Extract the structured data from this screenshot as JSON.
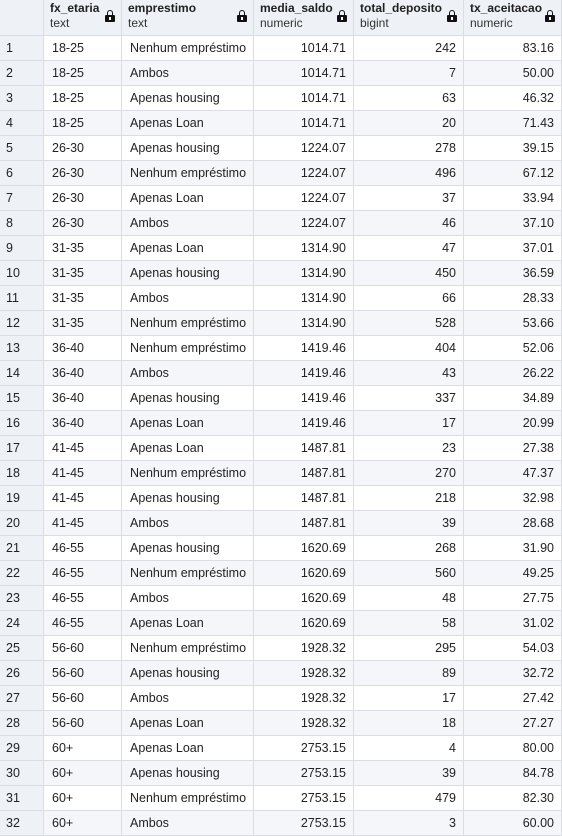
{
  "columns": [
    {
      "name": "fx_etaria",
      "type": "text"
    },
    {
      "name": "emprestimo",
      "type": "text"
    },
    {
      "name": "media_saldo",
      "type": "numeric"
    },
    {
      "name": "total_deposito",
      "type": "bigint"
    },
    {
      "name": "tx_aceitacao",
      "type": "numeric"
    }
  ],
  "icons": {
    "column_lock": "lock-icon"
  },
  "rows": [
    {
      "n": "1",
      "fx_etaria": "18-25",
      "emprestimo": "Nenhum empréstimo",
      "media_saldo": "1014.71",
      "total_deposito": "242",
      "tx_aceitacao": "83.16"
    },
    {
      "n": "2",
      "fx_etaria": "18-25",
      "emprestimo": "Ambos",
      "media_saldo": "1014.71",
      "total_deposito": "7",
      "tx_aceitacao": "50.00"
    },
    {
      "n": "3",
      "fx_etaria": "18-25",
      "emprestimo": "Apenas housing",
      "media_saldo": "1014.71",
      "total_deposito": "63",
      "tx_aceitacao": "46.32"
    },
    {
      "n": "4",
      "fx_etaria": "18-25",
      "emprestimo": "Apenas Loan",
      "media_saldo": "1014.71",
      "total_deposito": "20",
      "tx_aceitacao": "71.43"
    },
    {
      "n": "5",
      "fx_etaria": "26-30",
      "emprestimo": "Apenas housing",
      "media_saldo": "1224.07",
      "total_deposito": "278",
      "tx_aceitacao": "39.15"
    },
    {
      "n": "6",
      "fx_etaria": "26-30",
      "emprestimo": "Nenhum empréstimo",
      "media_saldo": "1224.07",
      "total_deposito": "496",
      "tx_aceitacao": "67.12"
    },
    {
      "n": "7",
      "fx_etaria": "26-30",
      "emprestimo": "Apenas Loan",
      "media_saldo": "1224.07",
      "total_deposito": "37",
      "tx_aceitacao": "33.94"
    },
    {
      "n": "8",
      "fx_etaria": "26-30",
      "emprestimo": "Ambos",
      "media_saldo": "1224.07",
      "total_deposito": "46",
      "tx_aceitacao": "37.10"
    },
    {
      "n": "9",
      "fx_etaria": "31-35",
      "emprestimo": "Apenas Loan",
      "media_saldo": "1314.90",
      "total_deposito": "47",
      "tx_aceitacao": "37.01"
    },
    {
      "n": "10",
      "fx_etaria": "31-35",
      "emprestimo": "Apenas housing",
      "media_saldo": "1314.90",
      "total_deposito": "450",
      "tx_aceitacao": "36.59"
    },
    {
      "n": "11",
      "fx_etaria": "31-35",
      "emprestimo": "Ambos",
      "media_saldo": "1314.90",
      "total_deposito": "66",
      "tx_aceitacao": "28.33"
    },
    {
      "n": "12",
      "fx_etaria": "31-35",
      "emprestimo": "Nenhum empréstimo",
      "media_saldo": "1314.90",
      "total_deposito": "528",
      "tx_aceitacao": "53.66"
    },
    {
      "n": "13",
      "fx_etaria": "36-40",
      "emprestimo": "Nenhum empréstimo",
      "media_saldo": "1419.46",
      "total_deposito": "404",
      "tx_aceitacao": "52.06"
    },
    {
      "n": "14",
      "fx_etaria": "36-40",
      "emprestimo": "Ambos",
      "media_saldo": "1419.46",
      "total_deposito": "43",
      "tx_aceitacao": "26.22"
    },
    {
      "n": "15",
      "fx_etaria": "36-40",
      "emprestimo": "Apenas housing",
      "media_saldo": "1419.46",
      "total_deposito": "337",
      "tx_aceitacao": "34.89"
    },
    {
      "n": "16",
      "fx_etaria": "36-40",
      "emprestimo": "Apenas Loan",
      "media_saldo": "1419.46",
      "total_deposito": "17",
      "tx_aceitacao": "20.99"
    },
    {
      "n": "17",
      "fx_etaria": "41-45",
      "emprestimo": "Apenas Loan",
      "media_saldo": "1487.81",
      "total_deposito": "23",
      "tx_aceitacao": "27.38"
    },
    {
      "n": "18",
      "fx_etaria": "41-45",
      "emprestimo": "Nenhum empréstimo",
      "media_saldo": "1487.81",
      "total_deposito": "270",
      "tx_aceitacao": "47.37"
    },
    {
      "n": "19",
      "fx_etaria": "41-45",
      "emprestimo": "Apenas housing",
      "media_saldo": "1487.81",
      "total_deposito": "218",
      "tx_aceitacao": "32.98"
    },
    {
      "n": "20",
      "fx_etaria": "41-45",
      "emprestimo": "Ambos",
      "media_saldo": "1487.81",
      "total_deposito": "39",
      "tx_aceitacao": "28.68"
    },
    {
      "n": "21",
      "fx_etaria": "46-55",
      "emprestimo": "Apenas housing",
      "media_saldo": "1620.69",
      "total_deposito": "268",
      "tx_aceitacao": "31.90"
    },
    {
      "n": "22",
      "fx_etaria": "46-55",
      "emprestimo": "Nenhum empréstimo",
      "media_saldo": "1620.69",
      "total_deposito": "560",
      "tx_aceitacao": "49.25"
    },
    {
      "n": "23",
      "fx_etaria": "46-55",
      "emprestimo": "Ambos",
      "media_saldo": "1620.69",
      "total_deposito": "48",
      "tx_aceitacao": "27.75"
    },
    {
      "n": "24",
      "fx_etaria": "46-55",
      "emprestimo": "Apenas Loan",
      "media_saldo": "1620.69",
      "total_deposito": "58",
      "tx_aceitacao": "31.02"
    },
    {
      "n": "25",
      "fx_etaria": "56-60",
      "emprestimo": "Nenhum empréstimo",
      "media_saldo": "1928.32",
      "total_deposito": "295",
      "tx_aceitacao": "54.03"
    },
    {
      "n": "26",
      "fx_etaria": "56-60",
      "emprestimo": "Apenas housing",
      "media_saldo": "1928.32",
      "total_deposito": "89",
      "tx_aceitacao": "32.72"
    },
    {
      "n": "27",
      "fx_etaria": "56-60",
      "emprestimo": "Ambos",
      "media_saldo": "1928.32",
      "total_deposito": "17",
      "tx_aceitacao": "27.42"
    },
    {
      "n": "28",
      "fx_etaria": "56-60",
      "emprestimo": "Apenas Loan",
      "media_saldo": "1928.32",
      "total_deposito": "18",
      "tx_aceitacao": "27.27"
    },
    {
      "n": "29",
      "fx_etaria": "60+",
      "emprestimo": "Apenas Loan",
      "media_saldo": "2753.15",
      "total_deposito": "4",
      "tx_aceitacao": "80.00"
    },
    {
      "n": "30",
      "fx_etaria": "60+",
      "emprestimo": "Apenas housing",
      "media_saldo": "2753.15",
      "total_deposito": "39",
      "tx_aceitacao": "84.78"
    },
    {
      "n": "31",
      "fx_etaria": "60+",
      "emprestimo": "Nenhum empréstimo",
      "media_saldo": "2753.15",
      "total_deposito": "479",
      "tx_aceitacao": "82.30"
    },
    {
      "n": "32",
      "fx_etaria": "60+",
      "emprestimo": "Ambos",
      "media_saldo": "2753.15",
      "total_deposito": "3",
      "tx_aceitacao": "60.00"
    }
  ]
}
